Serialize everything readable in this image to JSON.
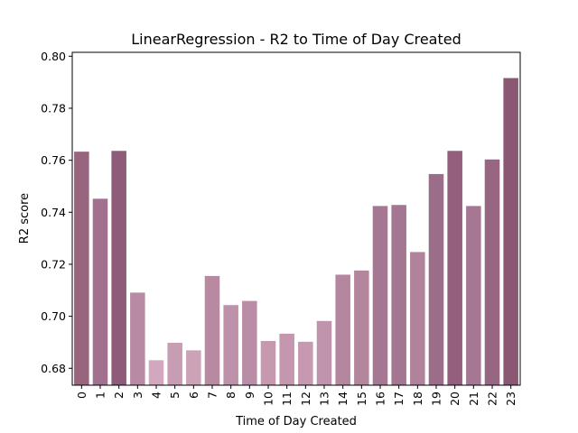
{
  "chart_data": {
    "type": "bar",
    "title": "LinearRegression - R2 to Time of Day Created",
    "xlabel": "Time of Day Created",
    "ylabel": "R2 score",
    "categories": [
      "0",
      "1",
      "2",
      "3",
      "4",
      "5",
      "6",
      "7",
      "8",
      "9",
      "10",
      "11",
      "12",
      "13",
      "14",
      "15",
      "16",
      "17",
      "18",
      "19",
      "20",
      "21",
      "22",
      "23"
    ],
    "values": [
      0.7633,
      0.7452,
      0.7636,
      0.7091,
      0.6831,
      0.6898,
      0.6869,
      0.7155,
      0.7043,
      0.7059,
      0.6905,
      0.6933,
      0.6902,
      0.6982,
      0.716,
      0.7176,
      0.7424,
      0.7428,
      0.7247,
      0.7547,
      0.7636,
      0.7424,
      0.7603,
      0.7916
    ],
    "colors": [
      "#98657f",
      "#a27190",
      "#8e5c78",
      "#b98aa3",
      "#d1a8bd",
      "#c79db4",
      "#cca2b8",
      "#b78aa2",
      "#be91aa",
      "#ba8da6",
      "#c699b1",
      "#c497af",
      "#c699b1",
      "#c194ad",
      "#b4879f",
      "#b3869e",
      "#a57792",
      "#a47691",
      "#b0829b",
      "#9c6d89",
      "#935f7c",
      "#a57792",
      "#976683",
      "#8a5873"
    ],
    "ylim": [
      0.6735,
      0.8015
    ],
    "yticks": [
      "0.68",
      "0.70",
      "0.72",
      "0.74",
      "0.76",
      "0.78",
      "0.80"
    ],
    "ytick_values": [
      0.68,
      0.7,
      0.72,
      0.74,
      0.76,
      0.78,
      0.8
    ],
    "grid": false,
    "legend": "none"
  }
}
